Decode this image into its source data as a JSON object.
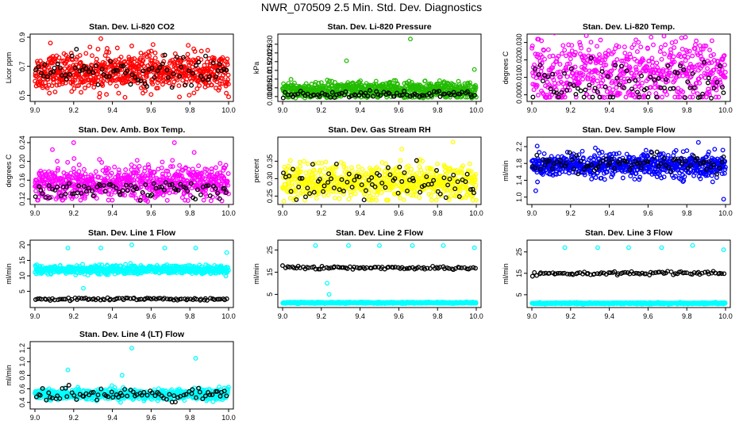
{
  "figure": {
    "title": "NWR_070509  2.5 Min. Std. Dev. Diagnostics"
  },
  "colors": {
    "red": "#ff0000",
    "green": "#22bb00",
    "magenta": "#ff00ff",
    "yellow": "#ffff00",
    "blue": "#0000ff",
    "cyan": "#00ffff",
    "black": "#000000"
  },
  "chart_data": [
    {
      "type": "scatter",
      "title": "Stan. Dev. Li-820 CO2",
      "ylabel": "Licor ppm",
      "xlabel": "",
      "xlim": [
        9.0,
        10.0
      ],
      "ylim": [
        0.48,
        0.9
      ],
      "x_ticks": [
        "9.0",
        "9.2",
        "9.4",
        "9.6",
        "9.8",
        "10.0"
      ],
      "y_ticks": [
        "0.5",
        "0.7",
        "0.9"
      ],
      "series": [
        {
          "name": "main",
          "color": "red",
          "n": 700,
          "center": 0.66,
          "spread": 0.06,
          "outliers": [
            [
              9.34,
              0.89
            ],
            [
              9.08,
              0.86
            ],
            [
              9.5,
              0.84
            ],
            [
              9.61,
              0.85
            ],
            [
              10.0,
              0.49
            ],
            [
              9.82,
              0.82
            ]
          ]
        },
        {
          "name": "secondary",
          "color": "black",
          "n": 80,
          "center": 0.66,
          "spread": 0.05,
          "outliers": []
        }
      ]
    },
    {
      "type": "scatter",
      "title": "Stan. Dev. Li-820 Pressure",
      "ylabel": "kPa",
      "xlabel": "",
      "xlim": [
        9.0,
        10.0
      ],
      "ylim": [
        -0.001,
        0.034
      ],
      "x_ticks": [
        "9.0",
        "9.2",
        "9.4",
        "9.6",
        "9.8",
        "10.0"
      ],
      "y_ticks": [
        "0.000",
        "0.005",
        "0.010",
        "0.015",
        "0.020",
        "0.025",
        "0.030"
      ],
      "series": [
        {
          "name": "main",
          "color": "green",
          "n": 700,
          "center": 0.0035,
          "spread": 0.0025,
          "outliers": [
            [
              9.66,
              0.033
            ],
            [
              9.33,
              0.0205
            ],
            [
              9.99,
              0.0155
            ],
            [
              9.2,
              0.008
            ]
          ]
        },
        {
          "name": "secondary",
          "color": "black",
          "n": 80,
          "center": 0.0012,
          "spread": 0.001,
          "outliers": []
        }
      ]
    },
    {
      "type": "scatter",
      "title": "Stan. Dev. Li-820 Temp.",
      "ylabel": "degrees C",
      "xlabel": "",
      "xlim": [
        9.0,
        10.0
      ],
      "ylim": [
        -0.002,
        0.033
      ],
      "x_ticks": [
        "9.0",
        "9.2",
        "9.4",
        "9.6",
        "9.8",
        "10.0"
      ],
      "y_ticks": [
        "0.000",
        "0.010",
        "0.020",
        "0.030"
      ],
      "series": [
        {
          "name": "main",
          "color": "magenta",
          "n": 600,
          "center": 0.012,
          "spread": 0.01,
          "outliers": [
            [
              9.05,
              0.031
            ],
            [
              9.93,
              0.031
            ]
          ]
        },
        {
          "name": "secondary",
          "color": "black",
          "n": 80,
          "center": 0.006,
          "spread": 0.006,
          "outliers": []
        }
      ]
    },
    {
      "type": "scatter",
      "title": "Stan. Dev. Amb. Box Temp.",
      "ylabel": "degrees C",
      "xlabel": "",
      "xlim": [
        9.0,
        10.0
      ],
      "ylim": [
        0.115,
        0.245
      ],
      "x_ticks": [
        "9.0",
        "9.2",
        "9.4",
        "9.6",
        "9.8",
        "10.0"
      ],
      "y_ticks": [
        "0.12",
        "0.16",
        "0.20",
        "0.24"
      ],
      "series": [
        {
          "name": "main",
          "color": "magenta",
          "n": 700,
          "center": 0.155,
          "spread": 0.018,
          "outliers": [
            [
              9.2,
              0.24
            ],
            [
              9.72,
              0.24
            ],
            [
              9.09,
              0.225
            ]
          ]
        },
        {
          "name": "secondary",
          "color": "black",
          "n": 80,
          "center": 0.14,
          "spread": 0.01,
          "outliers": []
        }
      ]
    },
    {
      "type": "scatter",
      "title": "Stan. Dev. Gas Stream RH",
      "ylabel": "percent",
      "xlabel": "",
      "xlim": [
        9.0,
        10.0
      ],
      "ylim": [
        0.235,
        0.41
      ],
      "x_ticks": [
        "9.0",
        "9.2",
        "9.4",
        "9.6",
        "9.8",
        "10.0"
      ],
      "y_ticks": [
        "0.25",
        "0.30",
        "0.35"
      ],
      "series": [
        {
          "name": "main",
          "color": "yellow",
          "n": 700,
          "center": 0.29,
          "spread": 0.025,
          "outliers": [
            [
              9.88,
              0.405
            ]
          ]
        },
        {
          "name": "secondary",
          "color": "black",
          "n": 80,
          "center": 0.29,
          "spread": 0.025,
          "outliers": []
        }
      ]
    },
    {
      "type": "scatter",
      "title": "Stan. Dev. Sample Flow",
      "ylabel": "ml/min",
      "xlabel": "",
      "xlim": [
        9.0,
        10.0
      ],
      "ylim": [
        0.9,
        2.35
      ],
      "x_ticks": [
        "9.0",
        "9.2",
        "9.4",
        "9.6",
        "9.8",
        "10.0"
      ],
      "y_ticks": [
        "1.0",
        "1.4",
        "1.8",
        "2.2"
      ],
      "series": [
        {
          "name": "main",
          "color": "blue",
          "n": 700,
          "center": 1.75,
          "spread": 0.14,
          "outliers": [
            [
              9.86,
              2.3
            ],
            [
              9.99,
              0.95
            ],
            [
              9.02,
              1.15
            ]
          ]
        },
        {
          "name": "secondary",
          "color": "black",
          "n": 80,
          "center": 1.8,
          "spread": 0.1,
          "outliers": []
        }
      ]
    },
    {
      "type": "scatter",
      "title": "Stan. Dev. Line 1 Flow",
      "ylabel": "ml/min",
      "xlabel": "",
      "xlim": [
        9.0,
        10.0
      ],
      "ylim": [
        0.8,
        20.5
      ],
      "x_ticks": [
        "9.0",
        "9.2",
        "9.4",
        "9.6",
        "9.8",
        "10.0"
      ],
      "y_ticks": [
        "5",
        "10",
        "15",
        "20"
      ],
      "series": [
        {
          "name": "main",
          "color": "cyan",
          "n": 600,
          "center": 12,
          "spread": 0.7,
          "outliers": [
            [
              9.5,
              20
            ],
            [
              9.17,
              19
            ],
            [
              9.34,
              19
            ],
            [
              9.67,
              19
            ],
            [
              9.83,
              19
            ],
            [
              9.99,
              17.5
            ],
            [
              9.25,
              6
            ]
          ]
        },
        {
          "name": "secondary",
          "color": "black",
          "n": 90,
          "center": 2.5,
          "spread": 0.2,
          "outliers": []
        }
      ]
    },
    {
      "type": "scatter",
      "title": "Stan. Dev. Line 2 Flow",
      "ylabel": "ml/min",
      "xlabel": "",
      "xlim": [
        9.0,
        10.0
      ],
      "ylim": [
        0.5,
        28
      ],
      "x_ticks": [
        "9.0",
        "9.2",
        "9.4",
        "9.6",
        "9.8",
        "10.0"
      ],
      "y_ticks": [
        "5",
        "15",
        "25"
      ],
      "series": [
        {
          "name": "main",
          "color": "cyan",
          "n": 600,
          "center": 1.2,
          "spread": 0.15,
          "outliers": [
            [
              9.17,
              27
            ],
            [
              9.34,
              27
            ],
            [
              9.5,
              27
            ],
            [
              9.67,
              27
            ],
            [
              9.83,
              27
            ],
            [
              9.99,
              26
            ],
            [
              9.23,
              10
            ],
            [
              9.24,
              5
            ]
          ]
        },
        {
          "name": "secondary",
          "color": "black",
          "n": 90,
          "center": 17,
          "spread": 0.4,
          "outliers": []
        }
      ]
    },
    {
      "type": "scatter",
      "title": "Stan. Dev. Line 3 Flow",
      "ylabel": "ml/min",
      "xlabel": "",
      "xlim": [
        9.0,
        10.0
      ],
      "ylim": [
        0.5,
        29
      ],
      "x_ticks": [
        "9.0",
        "9.2",
        "9.4",
        "9.6",
        "9.8",
        "10.0"
      ],
      "y_ticks": [
        "5",
        "15",
        "25"
      ],
      "series": [
        {
          "name": "main",
          "color": "cyan",
          "n": 600,
          "center": 1.0,
          "spread": 0.15,
          "outliers": [
            [
              9.17,
              27
            ],
            [
              9.34,
              27
            ],
            [
              9.5,
              27
            ],
            [
              9.67,
              27
            ],
            [
              9.83,
              28
            ],
            [
              9.99,
              26
            ]
          ]
        },
        {
          "name": "secondary",
          "color": "black",
          "n": 90,
          "center": 15,
          "spread": 0.4,
          "outliers": []
        }
      ]
    },
    {
      "type": "scatter",
      "title": "Stan. Dev. Line 4 (LT) Flow",
      "ylabel": "ml/min",
      "xlabel": "",
      "xlim": [
        9.0,
        10.0
      ],
      "ylim": [
        0.35,
        1.25
      ],
      "x_ticks": [
        "9.0",
        "9.2",
        "9.4",
        "9.6",
        "9.8",
        "10.0"
      ],
      "y_ticks": [
        "0.4",
        "0.6",
        "0.8",
        "1.0",
        "1.2"
      ],
      "series": [
        {
          "name": "main",
          "color": "cyan",
          "n": 600,
          "center": 0.52,
          "spread": 0.04,
          "outliers": [
            [
              9.5,
              1.2
            ],
            [
              9.83,
              1.05
            ],
            [
              9.17,
              0.88
            ],
            [
              9.45,
              0.8
            ]
          ]
        },
        {
          "name": "secondary",
          "color": "black",
          "n": 80,
          "center": 0.52,
          "spread": 0.05,
          "outliers": []
        }
      ]
    }
  ]
}
